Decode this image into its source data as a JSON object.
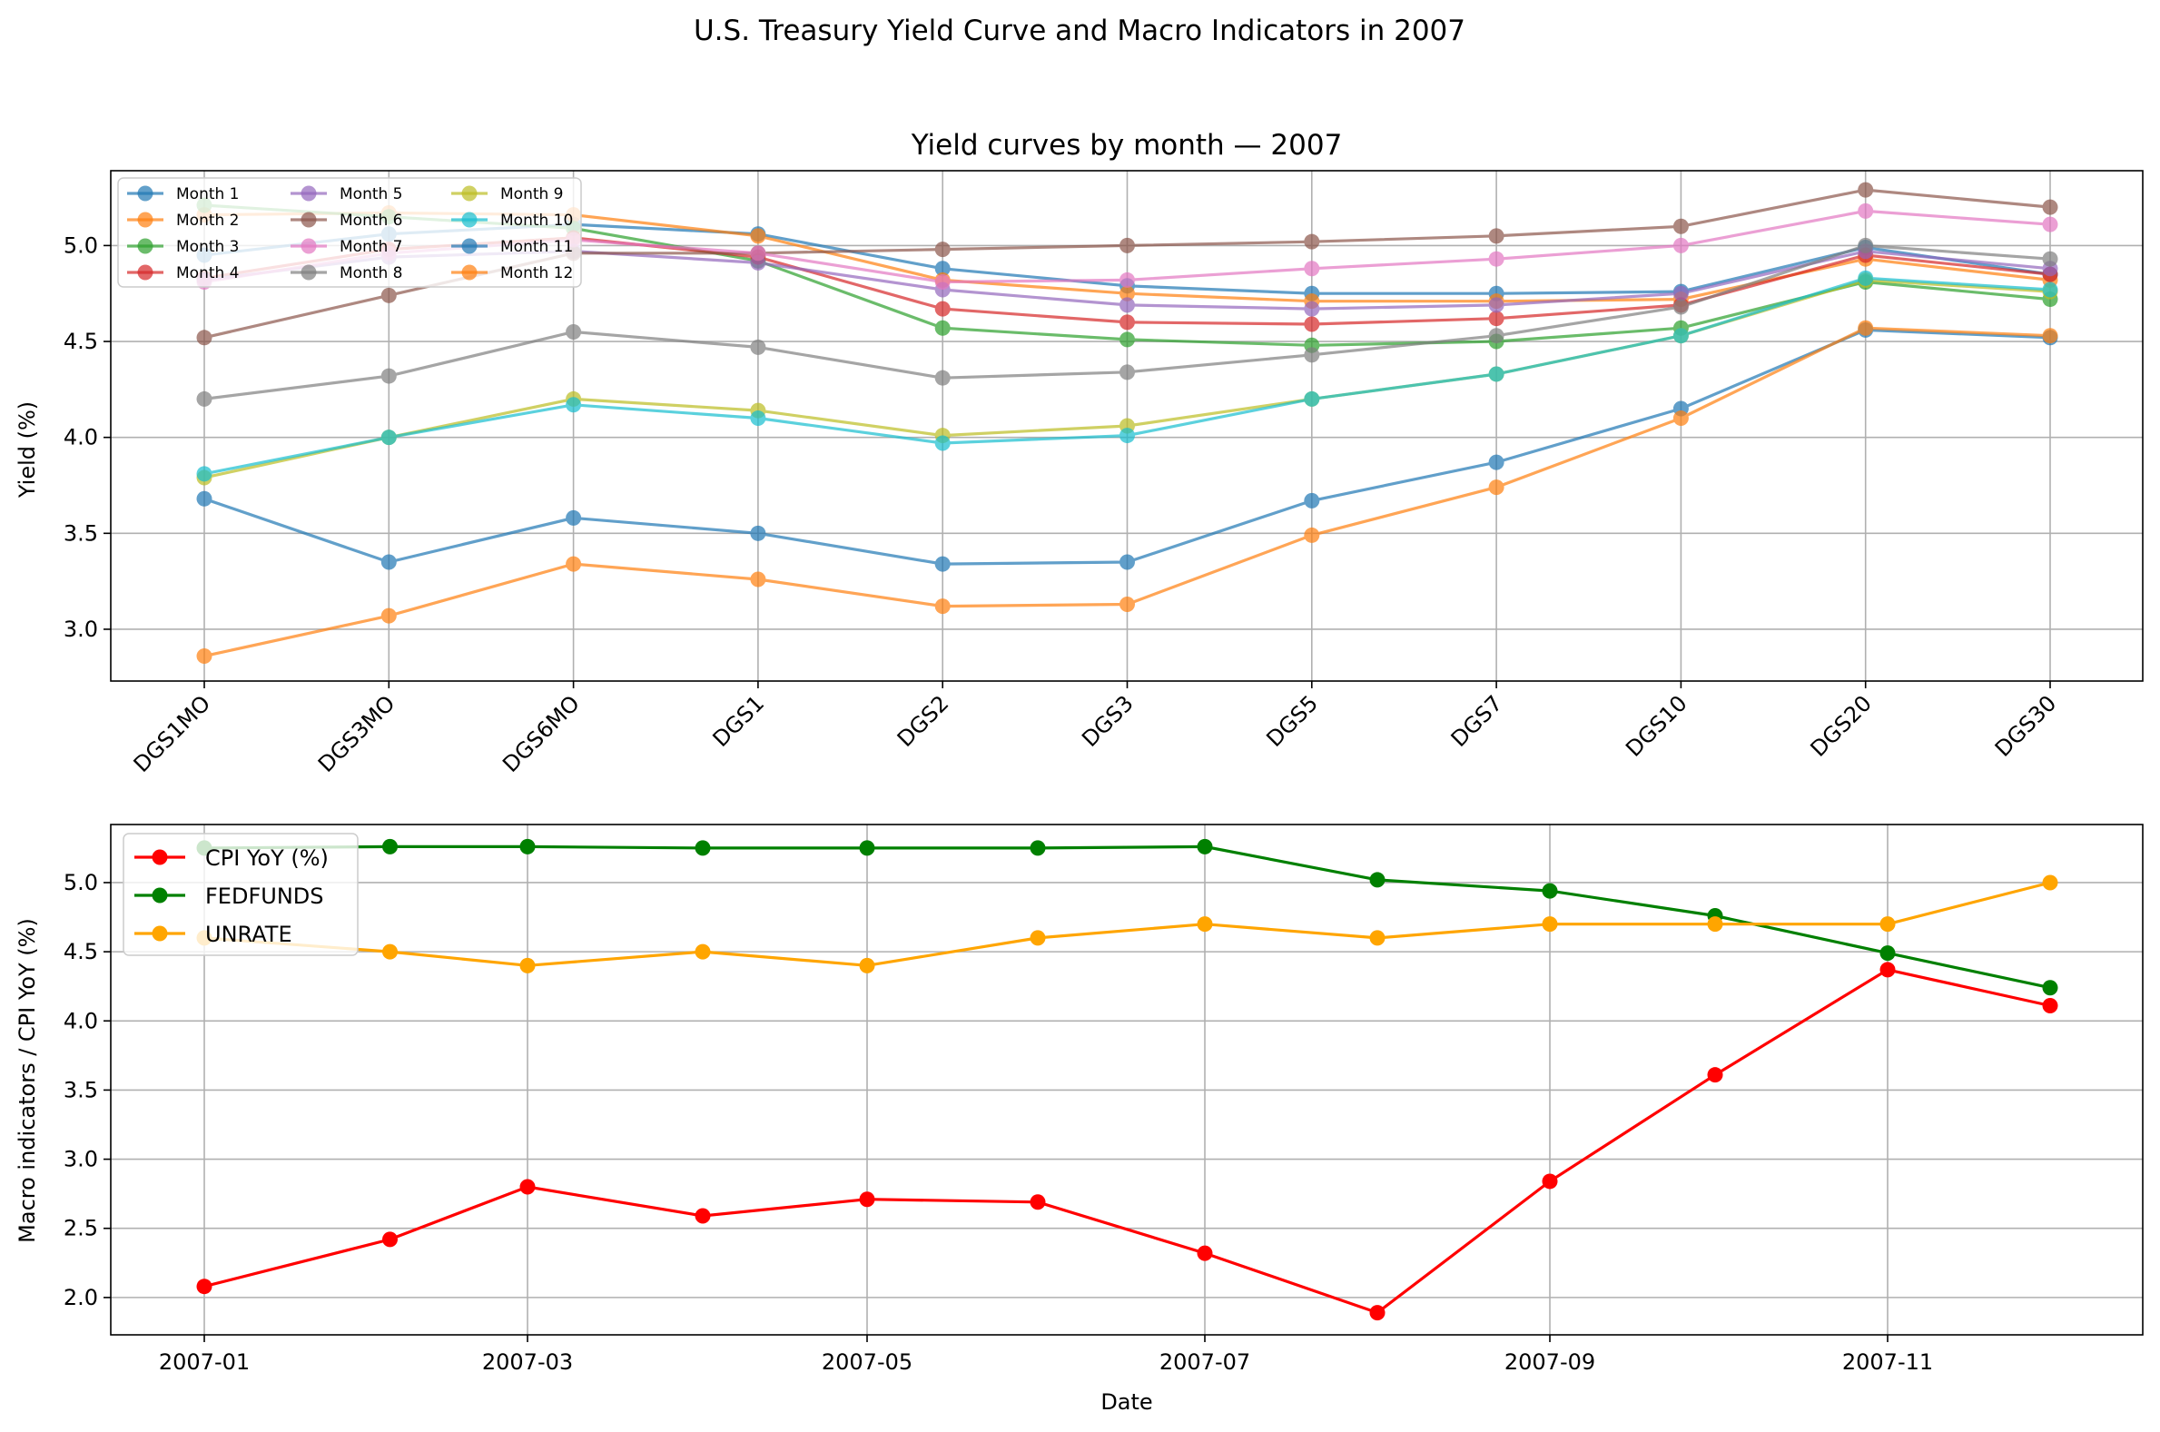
{
  "suptitle": "U.S. Treasury Yield Curve and Macro Indicators in 2007",
  "chart_data": [
    {
      "type": "line",
      "title": "Yield curves by month — 2007",
      "xlabel": "",
      "ylabel": "Yield (%)",
      "categories": [
        "DGS1MO",
        "DGS3MO",
        "DGS6MO",
        "DGS1",
        "DGS2",
        "DGS3",
        "DGS5",
        "DGS7",
        "DGS10",
        "DGS20",
        "DGS30"
      ],
      "ylim": [
        2.73,
        5.39
      ],
      "yticks": [
        "3.0",
        "3.5",
        "4.0",
        "4.5",
        "5.0"
      ],
      "grid": true,
      "legend_position": "top-left",
      "legend_columns": 3,
      "series": [
        {
          "name": "Month 1",
          "color": "#1f77b4",
          "values": [
            4.95,
            5.06,
            5.11,
            5.06,
            4.88,
            4.79,
            4.75,
            4.75,
            4.76,
            4.99,
            4.85
          ]
        },
        {
          "name": "Month 2",
          "color": "#ff7f0e",
          "values": [
            5.16,
            5.17,
            5.16,
            5.05,
            4.82,
            4.75,
            4.71,
            4.71,
            4.72,
            4.93,
            4.82
          ]
        },
        {
          "name": "Month 3",
          "color": "#2ca02c",
          "values": [
            5.21,
            5.15,
            5.09,
            4.92,
            4.57,
            4.51,
            4.48,
            4.5,
            4.57,
            4.81,
            4.72
          ]
        },
        {
          "name": "Month 4",
          "color": "#d62728",
          "values": [
            4.83,
            4.98,
            5.04,
            4.94,
            4.67,
            4.6,
            4.59,
            4.62,
            4.69,
            4.95,
            4.85
          ]
        },
        {
          "name": "Month 5",
          "color": "#9467bd",
          "values": [
            4.82,
            4.94,
            4.97,
            4.91,
            4.77,
            4.69,
            4.67,
            4.69,
            4.75,
            4.97,
            4.88
          ]
        },
        {
          "name": "Month 6",
          "color": "#8c564b",
          "values": [
            4.52,
            4.74,
            4.96,
            4.96,
            4.98,
            5.0,
            5.02,
            5.05,
            5.1,
            5.29,
            5.2
          ]
        },
        {
          "name": "Month 7",
          "color": "#e377c2",
          "values": [
            4.81,
            4.96,
            5.03,
            4.96,
            4.81,
            4.82,
            4.88,
            4.93,
            5.0,
            5.18,
            5.11
          ]
        },
        {
          "name": "Month 8",
          "color": "#7f7f7f",
          "values": [
            4.2,
            4.32,
            4.55,
            4.47,
            4.31,
            4.34,
            4.43,
            4.53,
            4.68,
            5.0,
            4.93
          ]
        },
        {
          "name": "Month 9",
          "color": "#bcbd22",
          "values": [
            3.79,
            4.0,
            4.2,
            4.14,
            4.01,
            4.06,
            4.2,
            4.33,
            4.53,
            4.82,
            4.76
          ]
        },
        {
          "name": "Month 10",
          "color": "#17becf",
          "values": [
            3.81,
            4.0,
            4.17,
            4.1,
            3.97,
            4.01,
            4.2,
            4.33,
            4.53,
            4.83,
            4.77
          ]
        },
        {
          "name": "Month 11",
          "color": "#1f77b4",
          "values": [
            3.68,
            3.35,
            3.58,
            3.5,
            3.34,
            3.35,
            3.67,
            3.87,
            4.15,
            4.56,
            4.52
          ]
        },
        {
          "name": "Month 12",
          "color": "#ff7f0e",
          "values": [
            2.86,
            3.07,
            3.34,
            3.26,
            3.12,
            3.13,
            3.49,
            3.74,
            4.1,
            4.57,
            4.53
          ]
        }
      ]
    },
    {
      "type": "line",
      "title": "",
      "xlabel": "Date",
      "ylabel": "Macro indicators / CPI YoY (%)",
      "x": [
        "2007-01",
        "2007-02",
        "2007-03",
        "2007-04",
        "2007-05",
        "2007-06",
        "2007-07",
        "2007-08",
        "2007-09",
        "2007-10",
        "2007-11",
        "2007-12"
      ],
      "xticks": [
        "2007-01",
        "2007-03",
        "2007-05",
        "2007-07",
        "2007-09",
        "2007-11"
      ],
      "ylim": [
        1.73,
        5.42
      ],
      "yticks": [
        "2.0",
        "2.5",
        "3.0",
        "3.5",
        "4.0",
        "4.5",
        "5.0"
      ],
      "grid": true,
      "legend_position": "top-left",
      "series": [
        {
          "name": "CPI YoY (%)",
          "color": "#ff0000",
          "values": [
            2.08,
            2.42,
            2.8,
            2.59,
            2.71,
            2.69,
            2.32,
            1.89,
            2.84,
            3.61,
            4.37,
            4.11
          ]
        },
        {
          "name": "FEDFUNDS",
          "color": "#008000",
          "values": [
            5.25,
            5.26,
            5.26,
            5.25,
            5.25,
            5.25,
            5.26,
            5.02,
            4.94,
            4.76,
            4.49,
            4.24
          ]
        },
        {
          "name": "UNRATE",
          "color": "#ffa500",
          "values": [
            4.6,
            4.5,
            4.4,
            4.5,
            4.4,
            4.6,
            4.7,
            4.6,
            4.7,
            4.7,
            4.7,
            5.0
          ]
        }
      ]
    }
  ]
}
